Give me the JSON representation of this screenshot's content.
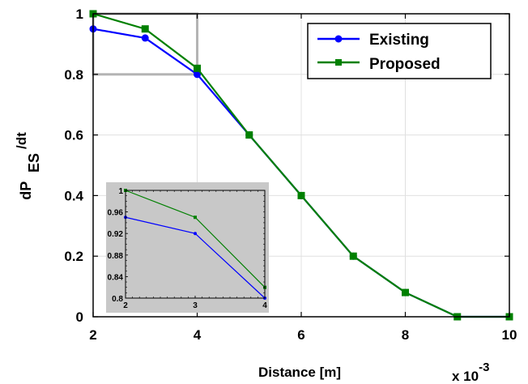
{
  "chart_data": {
    "type": "line",
    "xlabel": "Distance [m]",
    "ylabel_main": "dP",
    "ylabel_sub": "ES",
    "ylabel_sup": "/dt",
    "x_multiplier_base": "x 10",
    "x_multiplier_exp": "-3",
    "x": [
      2,
      3,
      4,
      5,
      6,
      7,
      8,
      9,
      10
    ],
    "xlim": [
      2,
      10
    ],
    "ylim": [
      0,
      1
    ],
    "xticks": [
      "2",
      "4",
      "6",
      "8",
      "10"
    ],
    "xtick_values": [
      2,
      4,
      6,
      8,
      10
    ],
    "yticks": [
      "0",
      "0.2",
      "0.4",
      "0.6",
      "0.8",
      "1"
    ],
    "ytick_values": [
      0,
      0.2,
      0.4,
      0.6,
      0.8,
      1
    ],
    "grid": true,
    "legend_position": "top-right",
    "series": [
      {
        "name": "Existing",
        "color": "#0000ff",
        "marker": "circle",
        "values": [
          0.95,
          0.92,
          0.8,
          0.6,
          0.4,
          0.2,
          0.08,
          0.0,
          0.0
        ]
      },
      {
        "name": "Proposed",
        "color": "#008000",
        "marker": "square",
        "values": [
          1.0,
          0.95,
          0.82,
          0.6,
          0.4,
          0.2,
          0.08,
          0.0,
          0.0
        ]
      }
    ],
    "zoom_region": {
      "xlim": [
        2,
        4
      ],
      "ylim": [
        0.8,
        1.0
      ]
    },
    "inset": {
      "xlim": [
        2,
        4
      ],
      "ylim": [
        0.8,
        1.0
      ],
      "xticks": [
        "2",
        "3",
        "4"
      ],
      "xtick_values": [
        2,
        3,
        4
      ],
      "yticks": [
        "0.8",
        "0.84",
        "0.88",
        "0.92",
        "0.96",
        "1"
      ],
      "ytick_values": [
        0.8,
        0.84,
        0.88,
        0.92,
        0.96,
        1.0
      ],
      "background": "#c8c8c8"
    }
  }
}
